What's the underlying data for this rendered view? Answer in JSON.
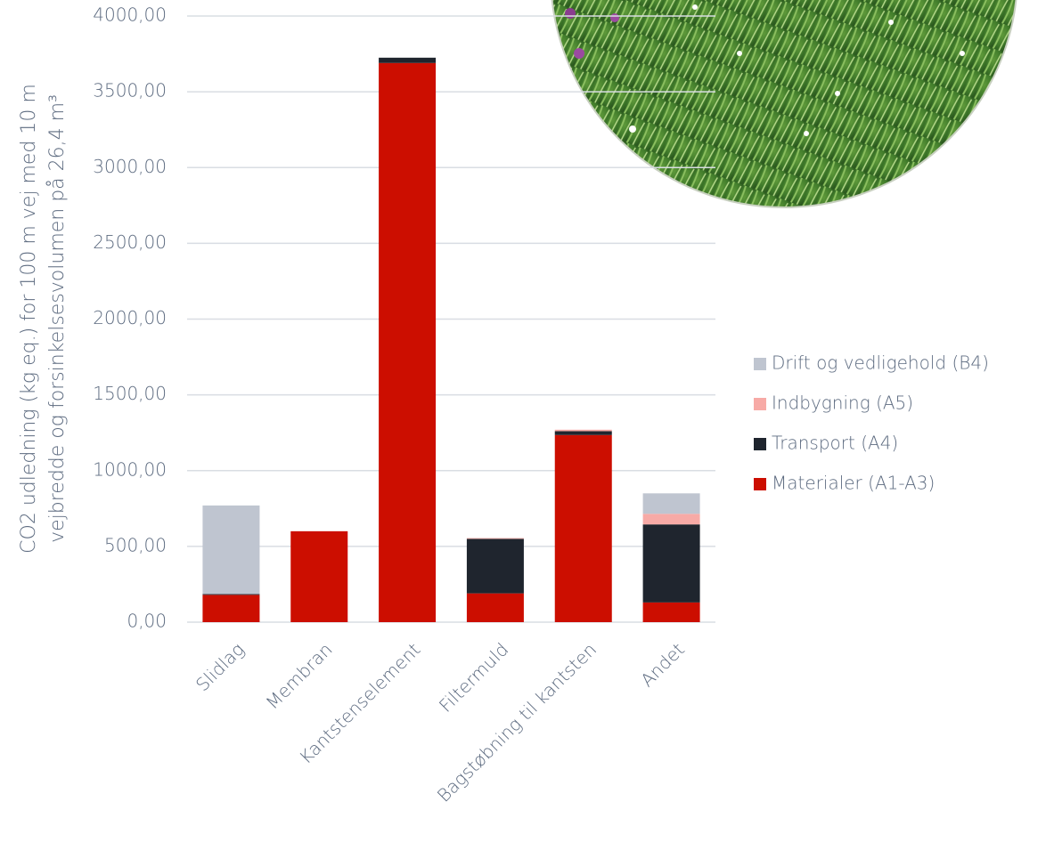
{
  "chart_data": {
    "type": "stacked_bar",
    "y_label": [
      "CO2 udledning (kg eq.) for 100 m vej med 10 m",
      "vejbredde og forsinkelsesvolumen på 26,4 m³"
    ],
    "categories": [
      "Slidlag",
      "Membran",
      "Kantstenselement",
      "Filtermuld",
      "Bagstøbning til kantsten",
      "Andet"
    ],
    "series": [
      {
        "name": "Materialer (A1-A3)",
        "color": "#cc0e00",
        "values": [
          180,
          600,
          3690,
          190,
          1235,
          130
        ]
      },
      {
        "name": "Transport (A4)",
        "color": "#1f252e",
        "values": [
          5,
          0,
          35,
          360,
          25,
          515
        ]
      },
      {
        "name": "Indbygning (A5)",
        "color": "#f7aaa6",
        "values": [
          0,
          0,
          0,
          5,
          10,
          70
        ]
      },
      {
        "name": "Drift og vedligehold (B4)",
        "color": "#bfc5d0",
        "values": [
          585,
          0,
          0,
          0,
          0,
          135
        ]
      }
    ],
    "ylim": [
      0,
      4000
    ],
    "yticks": [
      {
        "value": 0,
        "label": "0,00"
      },
      {
        "value": 500,
        "label": "500,00"
      },
      {
        "value": 1000,
        "label": "1000,00"
      },
      {
        "value": 1500,
        "label": "1500,00"
      },
      {
        "value": 2000,
        "label": "2000,00"
      },
      {
        "value": 2500,
        "label": "2500,00"
      },
      {
        "value": 3000,
        "label": "3000,00"
      },
      {
        "value": 3500,
        "label": "3500,00"
      },
      {
        "value": 4000,
        "label": "4000,00"
      }
    ],
    "grid": true,
    "legend": "right"
  }
}
